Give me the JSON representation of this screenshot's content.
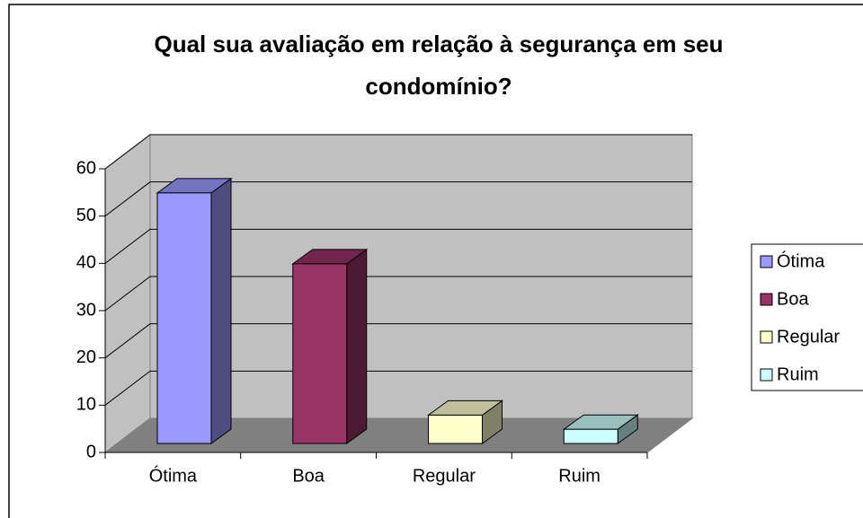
{
  "chart_data": {
    "type": "bar3d",
    "title": "Qual sua avaliação em relação à segurança em seu condomínio?",
    "categories": [
      "Ótima",
      "Boa",
      "Regular",
      "Ruim"
    ],
    "values": [
      53,
      38,
      6,
      3
    ],
    "colors": [
      "#9999ff",
      "#993366",
      "#ffffcc",
      "#ccffff"
    ],
    "ylim": [
      0,
      60
    ],
    "yticks": [
      0,
      10,
      20,
      30,
      40,
      50,
      60
    ],
    "grid": true,
    "legend": "right"
  }
}
